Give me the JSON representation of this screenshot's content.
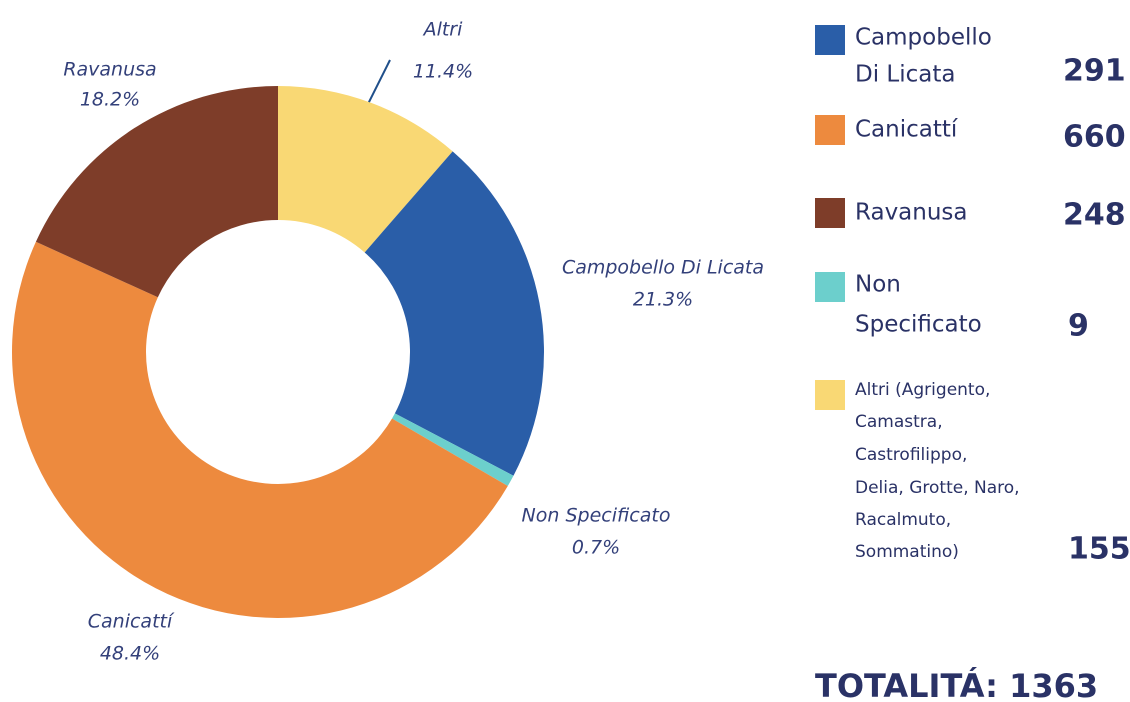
{
  "chart_data": {
    "type": "donut",
    "categories": [
      "Altri",
      "Campobello Di Licata",
      "Non Specificato",
      "Canicattí",
      "Ravanusa"
    ],
    "values": [
      11.4,
      21.3,
      0.7,
      48.4,
      18.2
    ],
    "value_labels": [
      "11.4%",
      "21.3%",
      "0.7%",
      "48.4%",
      "18.2%"
    ],
    "colors": [
      "#f9d874",
      "#2a5ea8",
      "#6ccfcc",
      "#ed8a3e",
      "#7e3d29"
    ]
  },
  "legend": [
    {
      "lines": [
        "Campobello",
        "Di Licata"
      ],
      "count": 291,
      "color": "#2a5ea8"
    },
    {
      "lines": [
        "Canicattí"
      ],
      "count": 660,
      "color": "#ed8a3e"
    },
    {
      "lines": [
        "Ravanusa"
      ],
      "count": 248,
      "color": "#7e3d29"
    },
    {
      "lines": [
        "Non",
        "Specificato"
      ],
      "count": 9,
      "color": "#6ccfcc"
    },
    {
      "lines": [
        "Altri (Agrigento,",
        "Camastra,",
        "Castrofilippo,",
        "Delia, Grotte, Naro,",
        "Racalmuto,",
        "Sommatino)"
      ],
      "count": 155,
      "color": "#f9d874"
    }
  ],
  "total": {
    "label": "TOTALITÁ:",
    "value": 1363
  }
}
